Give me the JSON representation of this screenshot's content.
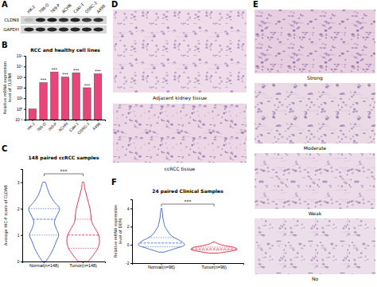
{
  "panel_labels": [
    "A",
    "B",
    "C",
    "D",
    "E",
    "F"
  ],
  "blot": {
    "lanes": [
      "HK-2",
      "786-O",
      "769-P",
      "ACHN",
      "Caki-1",
      "OSRC-2",
      "A498"
    ],
    "rows": [
      {
        "label": "CLDN8",
        "intensity": [
          0.15,
          0.9,
          0.95,
          0.85,
          0.9,
          0.8,
          0.85
        ]
      },
      {
        "label": "GAPDH",
        "intensity": [
          0.9,
          0.9,
          0.9,
          0.9,
          0.9,
          0.9,
          0.9
        ]
      }
    ]
  },
  "images_d": [
    "Adjacent kidney tissue",
    "ccRCC tissue"
  ],
  "images_e": [
    "Strong",
    "Moderate",
    "Weak",
    "No"
  ],
  "chart_data": [
    {
      "type": "bar",
      "title": "RCC and healthy cell lines",
      "y_label": [
        "Relative mRNA expression",
        "level of CLDN8"
      ],
      "categories": [
        "HK-2",
        "786-O",
        "769-P",
        "ACHN",
        "Caki-1",
        "OSRC-2",
        "A498"
      ],
      "values": [
        1,
        300,
        3000,
        1000,
        2500,
        100,
        2000
      ],
      "color": "#e8457a",
      "log": "y",
      "ylim": [
        0.1,
        100000
      ],
      "yticks": [
        {
          "value": 0.1,
          "label": "10⁻¹"
        },
        {
          "value": 1,
          "label": "10⁰"
        },
        {
          "value": 10,
          "label": "10¹"
        },
        {
          "value": 100,
          "label": "10²"
        },
        {
          "value": 1000,
          "label": "10³"
        },
        {
          "value": 10000,
          "label": "10⁴"
        },
        {
          "value": 100000,
          "label": "10⁵"
        }
      ],
      "annotations": [
        {
          "category": "786-O",
          "text": "***"
        },
        {
          "category": "769-P",
          "text": "***"
        },
        {
          "category": "ACHN",
          "text": "***"
        },
        {
          "category": "Caki-1",
          "text": "***"
        },
        {
          "category": "OSRC-2",
          "text": "***"
        },
        {
          "category": "A498",
          "text": "***"
        }
      ]
    },
    {
      "type": "violin",
      "title": "148 paired ccRCC samples",
      "y_label": [
        "Average IHC-P score of CLDN8"
      ],
      "categories": [
        "Normal(n=148)",
        "Tumor(n=148)"
      ],
      "colors": [
        "#4a6fd6",
        "#e0344f"
      ],
      "ylim": [
        0,
        3.5
      ],
      "yticks": [
        0,
        1,
        2,
        3
      ],
      "violins": [
        {
          "y": [
            0,
            0.25,
            0.5,
            0.75,
            1,
            1.25,
            1.5,
            1.75,
            2,
            2.25,
            2.5,
            2.75,
            3
          ],
          "density": [
            0.1,
            0.35,
            0.55,
            0.7,
            0.85,
            0.7,
            0.6,
            0.75,
            0.9,
            0.6,
            0.35,
            0.2,
            0.08
          ],
          "q1": 1,
          "median": 1.6,
          "q3": 2
        },
        {
          "y": [
            0,
            0.25,
            0.5,
            0.75,
            1,
            1.25,
            1.5,
            1.75,
            2,
            2.25,
            2.5,
            2.75,
            3
          ],
          "density": [
            0.3,
            0.6,
            0.85,
            0.95,
            0.9,
            0.7,
            0.5,
            0.45,
            0.4,
            0.3,
            0.2,
            0.1,
            0.05
          ],
          "q1": 0.5,
          "median": 1,
          "q3": 1.6
        }
      ],
      "annotations": [
        {
          "text": "***"
        }
      ]
    },
    {
      "type": "violin",
      "title": "24 paired Clinical Samples",
      "y_label": [
        "Relative mRNA expression",
        "level of DEF6"
      ],
      "categories": [
        "Normal(n=96)",
        "Tumor(n=96)"
      ],
      "colors": [
        "#4a6fd6",
        "#e0344f"
      ],
      "ylim": [
        -2,
        5
      ],
      "yticks": [
        -2,
        0,
        2,
        4
      ],
      "violins": [
        {
          "y": [
            -0.8,
            -0.4,
            0,
            0.4,
            0.8,
            1.2,
            1.6,
            2,
            2.5,
            3,
            3.5,
            4
          ],
          "density": [
            0.1,
            0.6,
            1,
            0.85,
            0.55,
            0.35,
            0.25,
            0.15,
            0.1,
            0.06,
            0.04,
            0.02
          ],
          "q1": -0.2,
          "median": 0.2,
          "q3": 0.8
        },
        {
          "y": [
            -0.9,
            -0.7,
            -0.5,
            -0.3,
            -0.1,
            0.1,
            0.3
          ],
          "density": [
            0.2,
            0.7,
            1,
            0.9,
            0.5,
            0.2,
            0.05
          ],
          "q1": -0.6,
          "median": -0.45,
          "q3": -0.25
        }
      ],
      "annotations": [
        {
          "text": "***"
        }
      ]
    }
  ]
}
